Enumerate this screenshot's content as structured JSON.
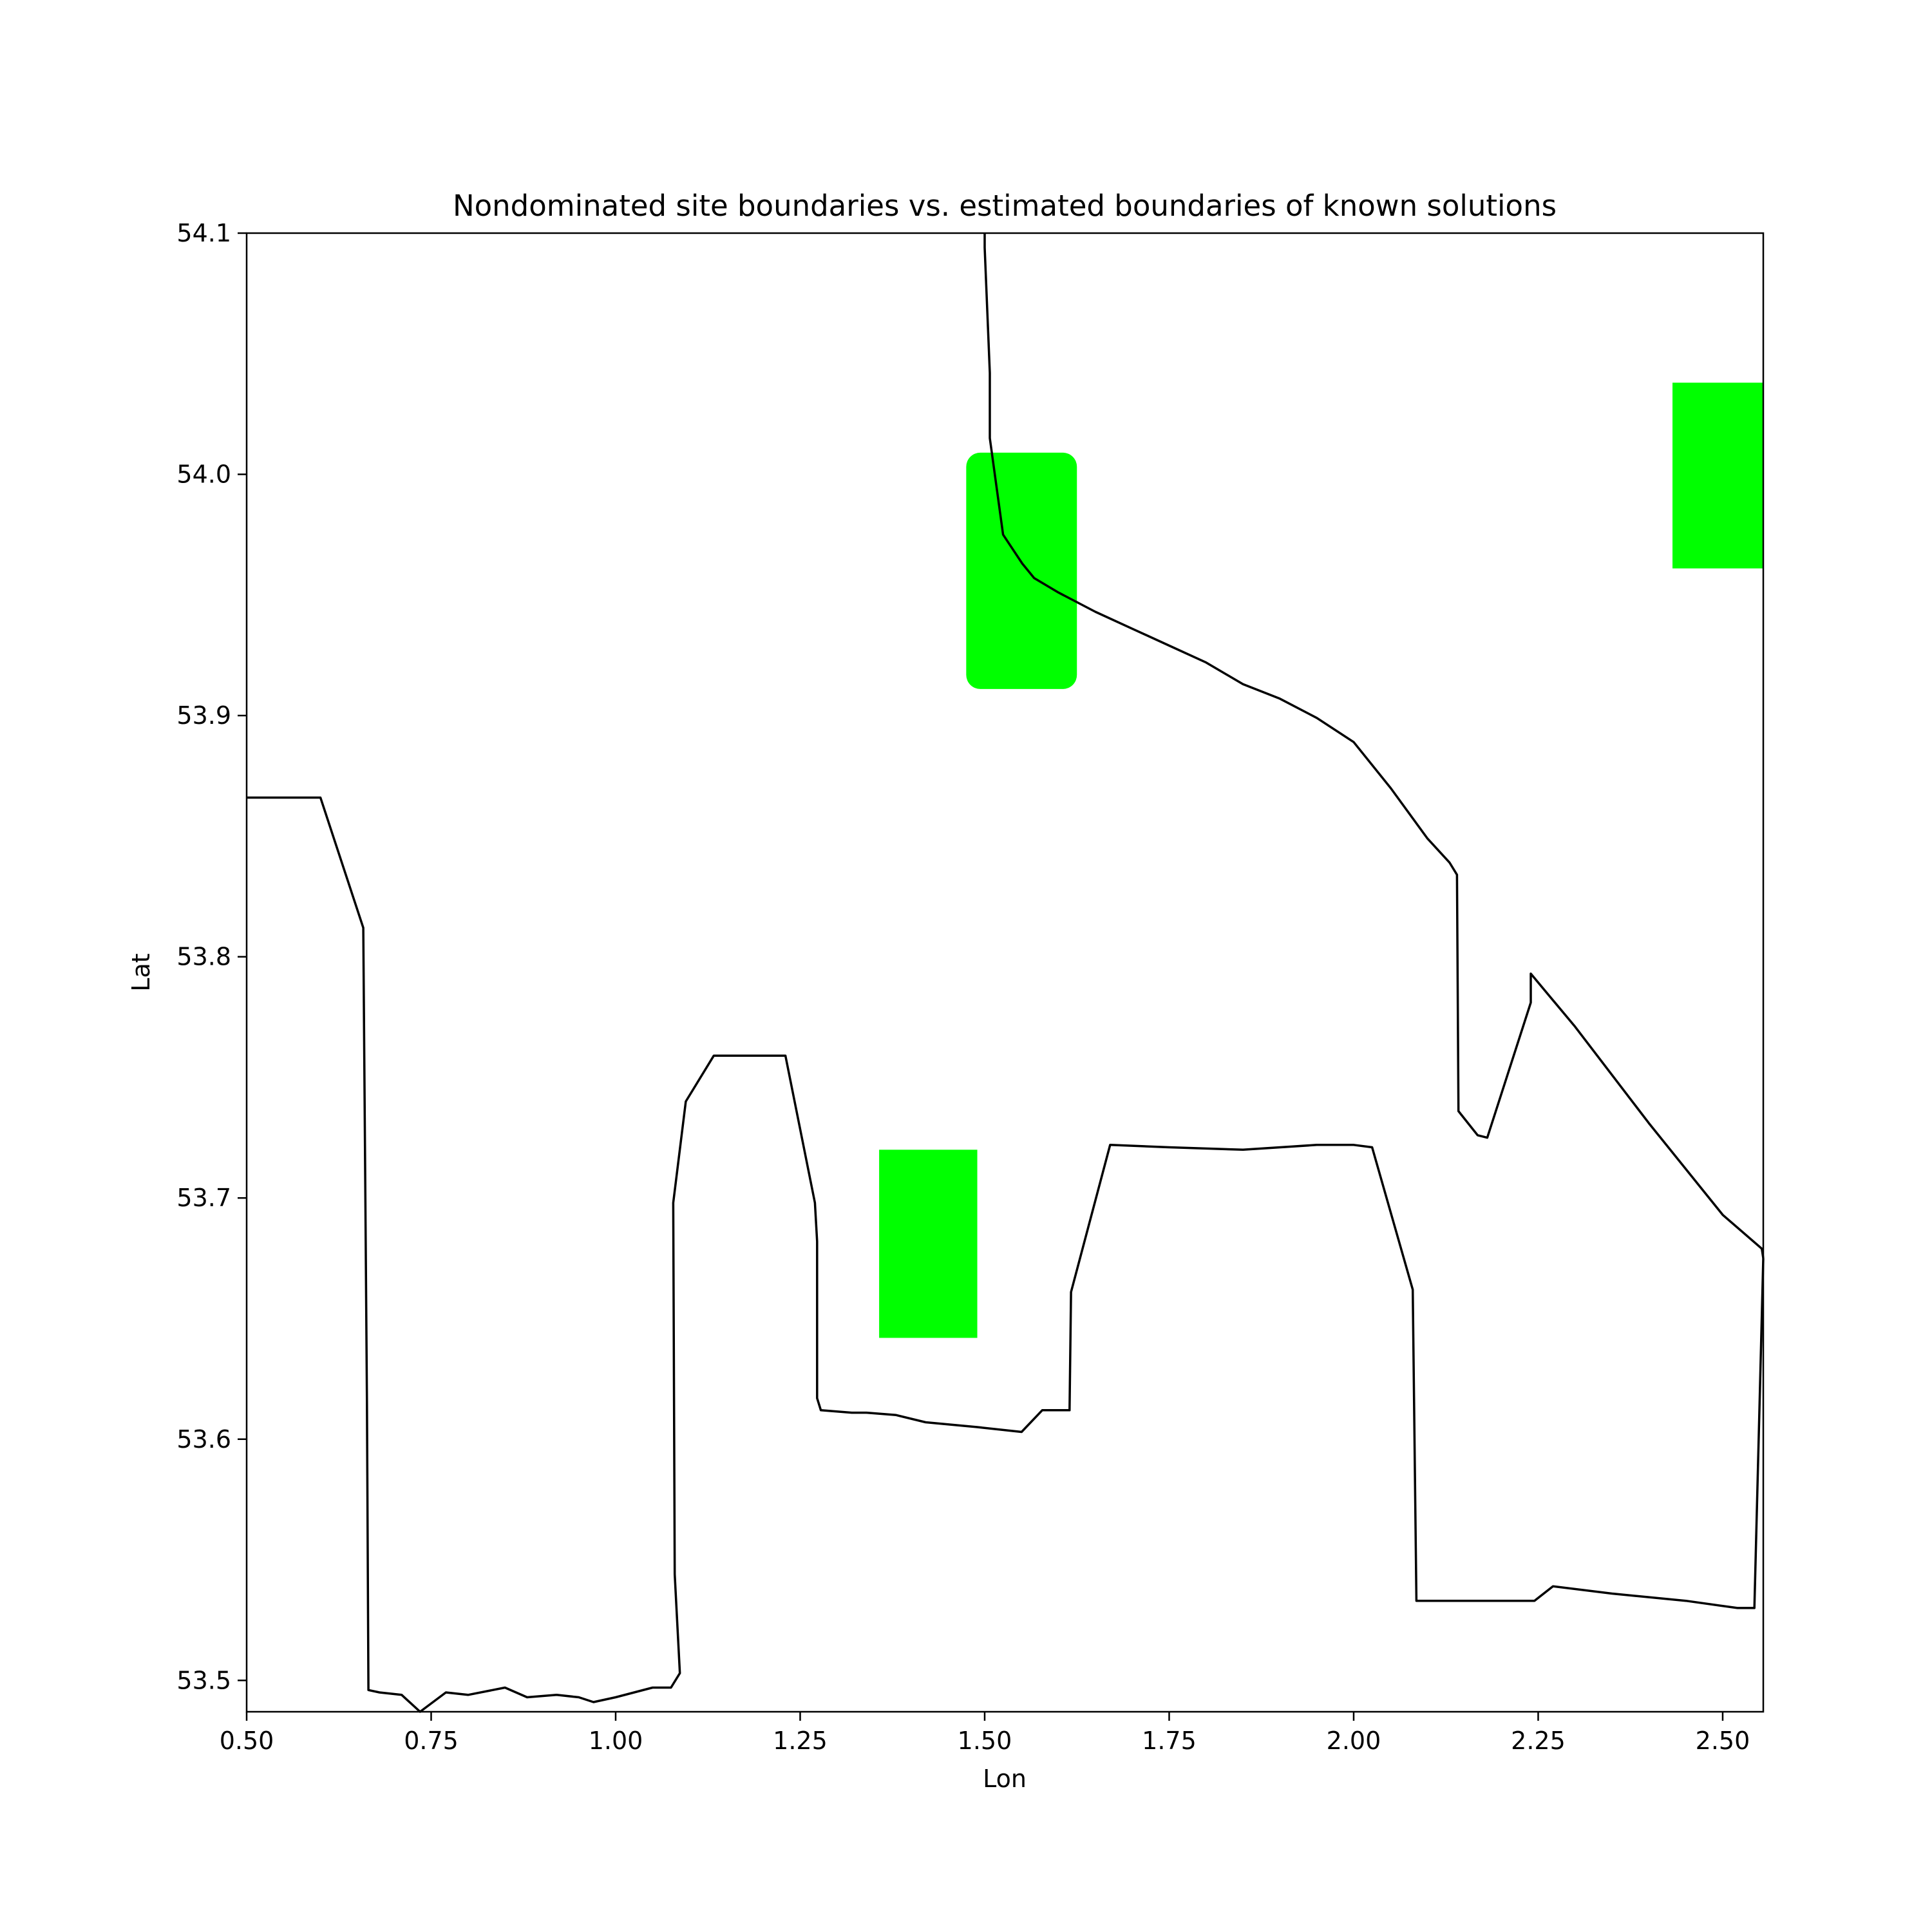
{
  "chart_data": {
    "type": "map",
    "title": "Nondominated site boundaries vs. estimated boundaries of known solutions",
    "xlabel": "Lon",
    "ylabel": "Lat",
    "xlim": [
      0.5,
      2.555
    ],
    "ylim": [
      53.487,
      54.1
    ],
    "grid": false,
    "legend": "none",
    "colors": {
      "boundary": "#000000",
      "known_solution": "#00ff00"
    },
    "xticks": [
      {
        "value": 0.5,
        "label": "0.50"
      },
      {
        "value": 0.75,
        "label": "0.75"
      },
      {
        "value": 1.0,
        "label": "1.00"
      },
      {
        "value": 1.25,
        "label": "1.25"
      },
      {
        "value": 1.5,
        "label": "1.50"
      },
      {
        "value": 1.75,
        "label": "1.75"
      },
      {
        "value": 2.0,
        "label": "2.00"
      },
      {
        "value": 2.25,
        "label": "2.25"
      },
      {
        "value": 2.5,
        "label": "2.50"
      }
    ],
    "yticks": [
      {
        "value": 53.5,
        "label": "53.5"
      },
      {
        "value": 53.6,
        "label": "53.6"
      },
      {
        "value": 53.7,
        "label": "53.7"
      },
      {
        "value": 53.8,
        "label": "53.8"
      },
      {
        "value": 53.9,
        "label": "53.9"
      },
      {
        "value": 54.0,
        "label": "54.0"
      },
      {
        "value": 54.1,
        "label": "54.1"
      }
    ],
    "known_solutions": [
      {
        "lon_min": 1.475,
        "lon_max": 1.625,
        "lat_min": 53.911,
        "lat_max": 54.009,
        "rounded": true
      },
      {
        "lon_min": 2.432,
        "lon_max": 2.555,
        "lat_min": 53.961,
        "lat_max": 54.038,
        "rounded": false
      },
      {
        "lon_min": 1.357,
        "lon_max": 1.49,
        "lat_min": 53.642,
        "lat_max": 53.72,
        "rounded": false
      }
    ],
    "boundaries": [
      {
        "points": [
          [
            1.5,
            54.1
          ],
          [
            1.5,
            54.094
          ],
          [
            1.507,
            54.042
          ],
          [
            1.507,
            54.015
          ],
          [
            1.525,
            53.975
          ],
          [
            1.551,
            53.963
          ],
          [
            1.567,
            53.957
          ],
          [
            1.6,
            53.951
          ],
          [
            1.65,
            53.943
          ],
          [
            1.7,
            53.936
          ],
          [
            1.75,
            53.929
          ],
          [
            1.8,
            53.922
          ],
          [
            1.85,
            53.913
          ],
          [
            1.9,
            53.907
          ],
          [
            1.95,
            53.899
          ],
          [
            2.0,
            53.889
          ],
          [
            2.05,
            53.87
          ],
          [
            2.1,
            53.849
          ],
          [
            2.13,
            53.839
          ],
          [
            2.14,
            53.834
          ],
          [
            2.142,
            53.736
          ],
          [
            2.168,
            53.726
          ],
          [
            2.181,
            53.725
          ],
          [
            2.24,
            53.781
          ],
          [
            2.24,
            53.793
          ],
          [
            2.3,
            53.771
          ],
          [
            2.4,
            53.731
          ],
          [
            2.5,
            53.693
          ],
          [
            2.553,
            53.679
          ],
          [
            2.555,
            53.675
          ]
        ]
      },
      {
        "points": [
          [
            0.5,
            53.866
          ],
          [
            0.6,
            53.866
          ],
          [
            0.658,
            53.812
          ],
          [
            0.663,
            53.615
          ],
          [
            0.665,
            53.496
          ],
          [
            0.68,
            53.495
          ],
          [
            0.71,
            53.494
          ],
          [
            0.735,
            53.487
          ],
          [
            0.77,
            53.495
          ],
          [
            0.8,
            53.494
          ],
          [
            0.85,
            53.497
          ],
          [
            0.88,
            53.493
          ],
          [
            0.92,
            53.494
          ],
          [
            0.95,
            53.493
          ],
          [
            0.97,
            53.491
          ],
          [
            1.0,
            53.493
          ],
          [
            1.05,
            53.497
          ],
          [
            1.075,
            53.497
          ],
          [
            1.087,
            53.503
          ],
          [
            1.08,
            53.544
          ],
          [
            1.078,
            53.698
          ],
          [
            1.095,
            53.74
          ],
          [
            1.133,
            53.759
          ],
          [
            1.2,
            53.759
          ],
          [
            1.23,
            53.759
          ],
          [
            1.27,
            53.698
          ],
          [
            1.273,
            53.682
          ],
          [
            1.273,
            53.617
          ],
          [
            1.278,
            53.612
          ],
          [
            1.32,
            53.611
          ],
          [
            1.34,
            53.611
          ],
          [
            1.38,
            53.61
          ],
          [
            1.42,
            53.607
          ],
          [
            1.49,
            53.605
          ],
          [
            1.55,
            53.603
          ],
          [
            1.578,
            53.612
          ],
          [
            1.615,
            53.612
          ],
          [
            1.617,
            53.661
          ],
          [
            1.67,
            53.722
          ],
          [
            1.75,
            53.721
          ],
          [
            1.85,
            53.72
          ],
          [
            1.95,
            53.722
          ],
          [
            2.0,
            53.722
          ],
          [
            2.025,
            53.721
          ],
          [
            2.08,
            53.662
          ],
          [
            2.085,
            53.533
          ],
          [
            2.2,
            53.533
          ],
          [
            2.245,
            53.533
          ],
          [
            2.27,
            53.539
          ],
          [
            2.35,
            53.536
          ],
          [
            2.45,
            53.533
          ],
          [
            2.52,
            53.53
          ],
          [
            2.543,
            53.53
          ],
          [
            2.555,
            53.675
          ]
        ]
      }
    ]
  }
}
